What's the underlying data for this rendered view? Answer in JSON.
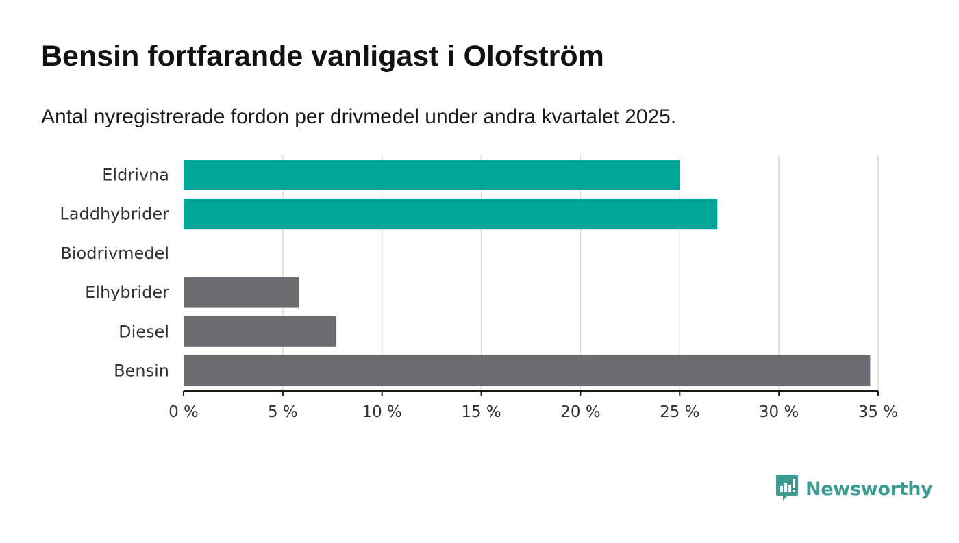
{
  "header": {
    "title": "Bensin fortfarande vanligast i Olofström",
    "subtitle": "Antal nyregistrerade fordon per drivmedel under andra kvartalet 2025."
  },
  "chart_data": {
    "type": "bar",
    "orientation": "horizontal",
    "categories": [
      "Eldrivna",
      "Laddhybrider",
      "Biodrivmedel",
      "Elhybrider",
      "Diesel",
      "Bensin"
    ],
    "values": [
      25.0,
      26.9,
      0,
      5.8,
      7.7,
      34.6
    ],
    "bar_colors": [
      "#00a59a",
      "#00a59a",
      "#00a59a",
      "#6d6c72",
      "#6d6c72",
      "#6d6c72"
    ],
    "xlim": [
      0,
      35
    ],
    "xticks": [
      0,
      5,
      10,
      15,
      20,
      25,
      30,
      35
    ],
    "xtick_labels": [
      "0 %",
      "5 %",
      "10 %",
      "15 %",
      "20 %",
      "25 %",
      "30 %",
      "35 %"
    ],
    "grid": true,
    "title": "Bensin fortfarande vanligast i Olofström",
    "xlabel": "",
    "ylabel": ""
  },
  "branding": {
    "logo_text": "Newsworthy",
    "logo_icon": "bar-chart-speech-bubble-icon",
    "color": "#3d9c92"
  }
}
